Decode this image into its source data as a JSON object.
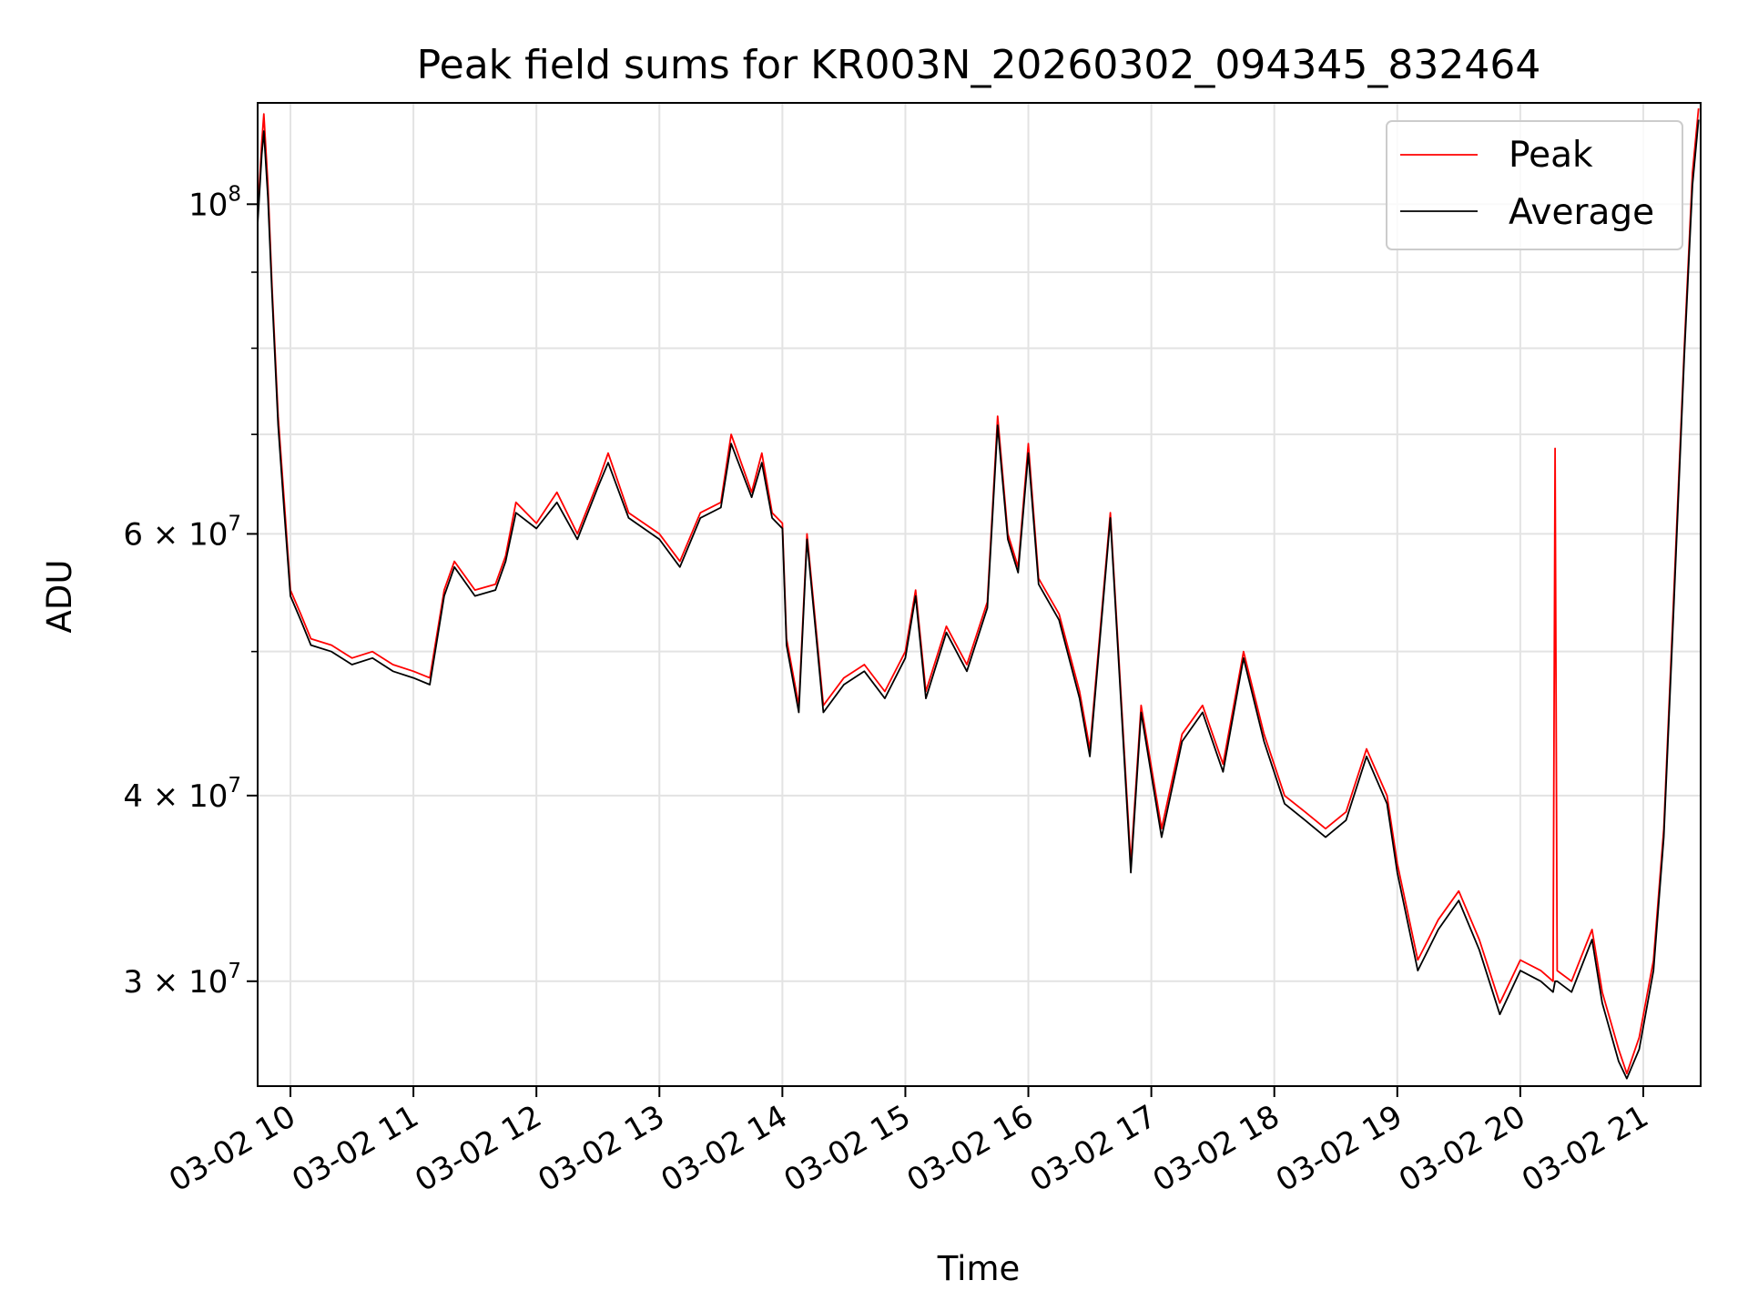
{
  "chart_data": {
    "type": "line",
    "title": "Peak field sums for KR003N_20260302_094345_832464",
    "xlabel": "Time",
    "ylabel": "ADU",
    "y_scale": "log",
    "ylim": [
      25500000,
      117000000
    ],
    "xlim": [
      "2026-03-02 09:44",
      "2026-03-02 21:28"
    ],
    "grid": true,
    "legend_position": "upper right",
    "x_ticks": [
      {
        "value": "2026-03-02 10:00",
        "label": "03-02 10"
      },
      {
        "value": "2026-03-02 11:00",
        "label": "03-02 11"
      },
      {
        "value": "2026-03-02 12:00",
        "label": "03-02 12"
      },
      {
        "value": "2026-03-02 13:00",
        "label": "03-02 13"
      },
      {
        "value": "2026-03-02 14:00",
        "label": "03-02 14"
      },
      {
        "value": "2026-03-02 15:00",
        "label": "03-02 15"
      },
      {
        "value": "2026-03-02 16:00",
        "label": "03-02 16"
      },
      {
        "value": "2026-03-02 17:00",
        "label": "03-02 17"
      },
      {
        "value": "2026-03-02 18:00",
        "label": "03-02 18"
      },
      {
        "value": "2026-03-02 19:00",
        "label": "03-02 19"
      },
      {
        "value": "2026-03-02 20:00",
        "label": "03-02 20"
      },
      {
        "value": "2026-03-02 21:00",
        "label": "03-02 21"
      }
    ],
    "y_major_ticks": [
      {
        "value": 30000000,
        "mantissa": "3 × 10",
        "exponent": "7"
      },
      {
        "value": 40000000,
        "mantissa": "4 × 10",
        "exponent": "7"
      },
      {
        "value": 60000000,
        "mantissa": "6 × 10",
        "exponent": "7"
      },
      {
        "value": 100000000,
        "mantissa": "10",
        "exponent": "8"
      }
    ],
    "y_minor_ticks": [
      50000000,
      70000000,
      80000000,
      90000000
    ],
    "series": [
      {
        "name": "Peak",
        "color": "#ff0000",
        "points": [
          [
            "2026-03-02 09:44",
            98000000
          ],
          [
            "2026-03-02 09:46",
            110000000
          ],
          [
            "2026-03-02 09:47",
            115000000
          ],
          [
            "2026-03-02 09:49",
            103000000
          ],
          [
            "2026-03-02 09:51",
            88000000
          ],
          [
            "2026-03-02 09:54",
            72000000
          ],
          [
            "2026-03-02 09:57",
            63000000
          ],
          [
            "2026-03-02 10:00",
            55000000
          ],
          [
            "2026-03-02 10:05",
            53000000
          ],
          [
            "2026-03-02 10:10",
            51000000
          ],
          [
            "2026-03-02 10:20",
            50500000
          ],
          [
            "2026-03-02 10:30",
            49500000
          ],
          [
            "2026-03-02 10:40",
            50000000
          ],
          [
            "2026-03-02 10:50",
            49000000
          ],
          [
            "2026-03-02 11:00",
            48500000
          ],
          [
            "2026-03-02 11:08",
            48000000
          ],
          [
            "2026-03-02 11:15",
            55000000
          ],
          [
            "2026-03-02 11:20",
            57500000
          ],
          [
            "2026-03-02 11:30",
            55000000
          ],
          [
            "2026-03-02 11:40",
            55500000
          ],
          [
            "2026-03-02 11:45",
            58000000
          ],
          [
            "2026-03-02 11:50",
            63000000
          ],
          [
            "2026-03-02 12:00",
            61000000
          ],
          [
            "2026-03-02 12:10",
            64000000
          ],
          [
            "2026-03-02 12:20",
            60000000
          ],
          [
            "2026-03-02 12:30",
            65000000
          ],
          [
            "2026-03-02 12:35",
            68000000
          ],
          [
            "2026-03-02 12:45",
            62000000
          ],
          [
            "2026-03-02 13:00",
            60000000
          ],
          [
            "2026-03-02 13:10",
            57500000
          ],
          [
            "2026-03-02 13:20",
            62000000
          ],
          [
            "2026-03-02 13:30",
            63000000
          ],
          [
            "2026-03-02 13:35",
            70000000
          ],
          [
            "2026-03-02 13:45",
            64000000
          ],
          [
            "2026-03-02 13:50",
            68000000
          ],
          [
            "2026-03-02 13:55",
            62000000
          ],
          [
            "2026-03-02 14:00",
            61000000
          ],
          [
            "2026-03-02 14:02",
            51000000
          ],
          [
            "2026-03-02 14:08",
            46000000
          ],
          [
            "2026-03-02 14:12",
            60000000
          ],
          [
            "2026-03-02 14:20",
            46000000
          ],
          [
            "2026-03-02 14:30",
            48000000
          ],
          [
            "2026-03-02 14:40",
            49000000
          ],
          [
            "2026-03-02 14:50",
            47000000
          ],
          [
            "2026-03-02 15:00",
            50000000
          ],
          [
            "2026-03-02 15:05",
            55000000
          ],
          [
            "2026-03-02 15:10",
            47000000
          ],
          [
            "2026-03-02 15:20",
            52000000
          ],
          [
            "2026-03-02 15:30",
            49000000
          ],
          [
            "2026-03-02 15:40",
            54000000
          ],
          [
            "2026-03-02 15:45",
            72000000
          ],
          [
            "2026-03-02 15:50",
            60000000
          ],
          [
            "2026-03-02 15:55",
            57000000
          ],
          [
            "2026-03-02 16:00",
            69000000
          ],
          [
            "2026-03-02 16:05",
            56000000
          ],
          [
            "2026-03-02 16:15",
            53000000
          ],
          [
            "2026-03-02 16:25",
            47000000
          ],
          [
            "2026-03-02 16:30",
            43000000
          ],
          [
            "2026-03-02 16:40",
            62000000
          ],
          [
            "2026-03-02 16:50",
            36000000
          ],
          [
            "2026-03-02 16:55",
            46000000
          ],
          [
            "2026-03-02 17:05",
            38000000
          ],
          [
            "2026-03-02 17:15",
            44000000
          ],
          [
            "2026-03-02 17:25",
            46000000
          ],
          [
            "2026-03-02 17:35",
            42000000
          ],
          [
            "2026-03-02 17:45",
            50000000
          ],
          [
            "2026-03-02 17:55",
            44000000
          ],
          [
            "2026-03-02 18:05",
            40000000
          ],
          [
            "2026-03-02 18:15",
            39000000
          ],
          [
            "2026-03-02 18:25",
            38000000
          ],
          [
            "2026-03-02 18:35",
            39000000
          ],
          [
            "2026-03-02 18:45",
            43000000
          ],
          [
            "2026-03-02 18:55",
            40000000
          ],
          [
            "2026-03-02 19:00",
            36000000
          ],
          [
            "2026-03-02 19:10",
            31000000
          ],
          [
            "2026-03-02 19:20",
            33000000
          ],
          [
            "2026-03-02 19:30",
            34500000
          ],
          [
            "2026-03-02 19:40",
            32000000
          ],
          [
            "2026-03-02 19:50",
            29000000
          ],
          [
            "2026-03-02 20:00",
            31000000
          ],
          [
            "2026-03-02 20:10",
            30500000
          ],
          [
            "2026-03-02 20:16",
            30000000
          ],
          [
            "2026-03-02 20:17",
            68500000
          ],
          [
            "2026-03-02 20:18",
            30500000
          ],
          [
            "2026-03-02 20:25",
            30000000
          ],
          [
            "2026-03-02 20:35",
            32500000
          ],
          [
            "2026-03-02 20:40",
            29500000
          ],
          [
            "2026-03-02 20:48",
            27000000
          ],
          [
            "2026-03-02 20:52",
            26000000
          ],
          [
            "2026-03-02 20:58",
            27500000
          ],
          [
            "2026-03-02 21:05",
            31000000
          ],
          [
            "2026-03-02 21:10",
            38000000
          ],
          [
            "2026-03-02 21:15",
            55000000
          ],
          [
            "2026-03-02 21:20",
            80000000
          ],
          [
            "2026-03-02 21:24",
            105000000
          ],
          [
            "2026-03-02 21:27",
            116000000
          ]
        ]
      },
      {
        "name": "Average",
        "color": "#000000",
        "points": [
          [
            "2026-03-02 09:44",
            97000000
          ],
          [
            "2026-03-02 09:46",
            108000000
          ],
          [
            "2026-03-02 09:47",
            112000000
          ],
          [
            "2026-03-02 09:49",
            101000000
          ],
          [
            "2026-03-02 09:51",
            87000000
          ],
          [
            "2026-03-02 09:54",
            71000000
          ],
          [
            "2026-03-02 09:57",
            62000000
          ],
          [
            "2026-03-02 10:00",
            54500000
          ],
          [
            "2026-03-02 10:05",
            52500000
          ],
          [
            "2026-03-02 10:10",
            50500000
          ],
          [
            "2026-03-02 10:20",
            50000000
          ],
          [
            "2026-03-02 10:30",
            49000000
          ],
          [
            "2026-03-02 10:40",
            49500000
          ],
          [
            "2026-03-02 10:50",
            48500000
          ],
          [
            "2026-03-02 11:00",
            48000000
          ],
          [
            "2026-03-02 11:08",
            47500000
          ],
          [
            "2026-03-02 11:15",
            54500000
          ],
          [
            "2026-03-02 11:20",
            57000000
          ],
          [
            "2026-03-02 11:30",
            54500000
          ],
          [
            "2026-03-02 11:40",
            55000000
          ],
          [
            "2026-03-02 11:45",
            57500000
          ],
          [
            "2026-03-02 11:50",
            62000000
          ],
          [
            "2026-03-02 12:00",
            60500000
          ],
          [
            "2026-03-02 12:10",
            63000000
          ],
          [
            "2026-03-02 12:20",
            59500000
          ],
          [
            "2026-03-02 12:30",
            64500000
          ],
          [
            "2026-03-02 12:35",
            67000000
          ],
          [
            "2026-03-02 12:45",
            61500000
          ],
          [
            "2026-03-02 13:00",
            59500000
          ],
          [
            "2026-03-02 13:10",
            57000000
          ],
          [
            "2026-03-02 13:20",
            61500000
          ],
          [
            "2026-03-02 13:30",
            62500000
          ],
          [
            "2026-03-02 13:35",
            69000000
          ],
          [
            "2026-03-02 13:45",
            63500000
          ],
          [
            "2026-03-02 13:50",
            67000000
          ],
          [
            "2026-03-02 13:55",
            61500000
          ],
          [
            "2026-03-02 14:00",
            60500000
          ],
          [
            "2026-03-02 14:02",
            50500000
          ],
          [
            "2026-03-02 14:08",
            45500000
          ],
          [
            "2026-03-02 14:12",
            59500000
          ],
          [
            "2026-03-02 14:20",
            45500000
          ],
          [
            "2026-03-02 14:30",
            47500000
          ],
          [
            "2026-03-02 14:40",
            48500000
          ],
          [
            "2026-03-02 14:50",
            46500000
          ],
          [
            "2026-03-02 15:00",
            49500000
          ],
          [
            "2026-03-02 15:05",
            54500000
          ],
          [
            "2026-03-02 15:10",
            46500000
          ],
          [
            "2026-03-02 15:20",
            51500000
          ],
          [
            "2026-03-02 15:30",
            48500000
          ],
          [
            "2026-03-02 15:40",
            53500000
          ],
          [
            "2026-03-02 15:45",
            71000000
          ],
          [
            "2026-03-02 15:50",
            59500000
          ],
          [
            "2026-03-02 15:55",
            56500000
          ],
          [
            "2026-03-02 16:00",
            68000000
          ],
          [
            "2026-03-02 16:05",
            55500000
          ],
          [
            "2026-03-02 16:15",
            52500000
          ],
          [
            "2026-03-02 16:25",
            46500000
          ],
          [
            "2026-03-02 16:30",
            42500000
          ],
          [
            "2026-03-02 16:40",
            61500000
          ],
          [
            "2026-03-02 16:50",
            35500000
          ],
          [
            "2026-03-02 16:55",
            45500000
          ],
          [
            "2026-03-02 17:05",
            37500000
          ],
          [
            "2026-03-02 17:15",
            43500000
          ],
          [
            "2026-03-02 17:25",
            45500000
          ],
          [
            "2026-03-02 17:35",
            41500000
          ],
          [
            "2026-03-02 17:45",
            49500000
          ],
          [
            "2026-03-02 17:55",
            43500000
          ],
          [
            "2026-03-02 18:05",
            39500000
          ],
          [
            "2026-03-02 18:15",
            38500000
          ],
          [
            "2026-03-02 18:25",
            37500000
          ],
          [
            "2026-03-02 18:35",
            38500000
          ],
          [
            "2026-03-02 18:45",
            42500000
          ],
          [
            "2026-03-02 18:55",
            39500000
          ],
          [
            "2026-03-02 19:00",
            35500000
          ],
          [
            "2026-03-02 19:10",
            30500000
          ],
          [
            "2026-03-02 19:20",
            32500000
          ],
          [
            "2026-03-02 19:30",
            34000000
          ],
          [
            "2026-03-02 19:40",
            31500000
          ],
          [
            "2026-03-02 19:50",
            28500000
          ],
          [
            "2026-03-02 20:00",
            30500000
          ],
          [
            "2026-03-02 20:10",
            30000000
          ],
          [
            "2026-03-02 20:16",
            29500000
          ],
          [
            "2026-03-02 20:17",
            30000000
          ],
          [
            "2026-03-02 20:18",
            30000000
          ],
          [
            "2026-03-02 20:25",
            29500000
          ],
          [
            "2026-03-02 20:35",
            32000000
          ],
          [
            "2026-03-02 20:40",
            29000000
          ],
          [
            "2026-03-02 20:48",
            26500000
          ],
          [
            "2026-03-02 20:52",
            25800000
          ],
          [
            "2026-03-02 20:58",
            27000000
          ],
          [
            "2026-03-02 21:05",
            30500000
          ],
          [
            "2026-03-02 21:10",
            37500000
          ],
          [
            "2026-03-02 21:15",
            54000000
          ],
          [
            "2026-03-02 21:20",
            79000000
          ],
          [
            "2026-03-02 21:24",
            103000000
          ],
          [
            "2026-03-02 21:27",
            114000000
          ]
        ]
      }
    ]
  }
}
